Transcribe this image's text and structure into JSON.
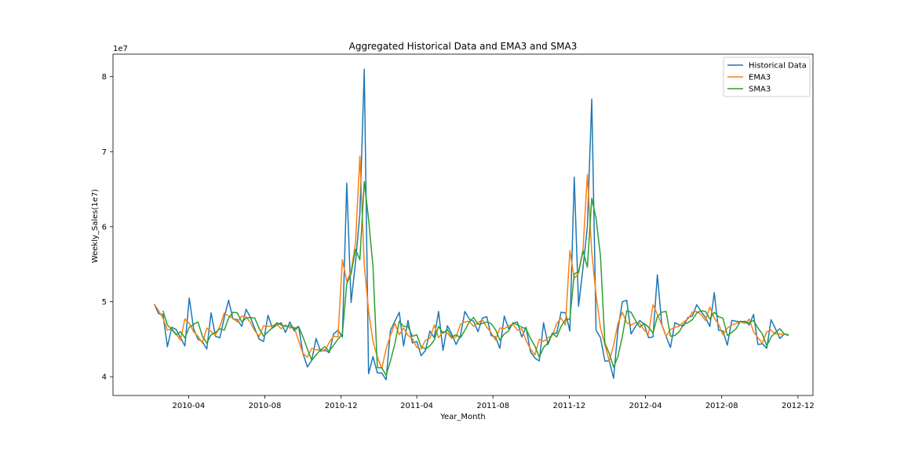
{
  "chart_data": {
    "type": "line",
    "title": "Aggregated Historical Data and EMA3 and SMA3",
    "xlabel": "Year_Month",
    "ylabel": "Weekly_Sales(1e7)",
    "y_offset_label": "1e7",
    "x_ticks": [
      "2010-04",
      "2010-08",
      "2010-12",
      "2011-04",
      "2011-08",
      "2011-12",
      "2012-04",
      "2012-08",
      "2012-12"
    ],
    "y_ticks": [
      4,
      5,
      6,
      7,
      8
    ],
    "xlim": [
      "2009-12-01",
      "2012-12-25"
    ],
    "ylim": [
      3.75,
      8.3
    ],
    "grid": false,
    "legend_position": "top-right",
    "start_date": "2010-02-05",
    "series": [
      {
        "name": "Historical Data",
        "color": "#1f77b4",
        "values": [
          4.97,
          4.84,
          4.83,
          4.4,
          4.66,
          4.63,
          4.52,
          4.41,
          5.05,
          4.64,
          4.5,
          4.47,
          4.37,
          4.85,
          4.54,
          4.52,
          4.79,
          5.02,
          4.77,
          4.76,
          4.67,
          4.9,
          4.79,
          4.64,
          4.5,
          4.47,
          4.82,
          4.65,
          4.69,
          4.72,
          4.59,
          4.73,
          4.61,
          4.67,
          4.31,
          4.13,
          4.22,
          4.51,
          4.34,
          4.36,
          4.32,
          4.57,
          4.62,
          4.53,
          6.58,
          4.99,
          5.52,
          6.17,
          8.1,
          4.04,
          4.27,
          4.05,
          4.05,
          3.96,
          4.62,
          4.74,
          4.86,
          4.41,
          4.75,
          4.45,
          4.47,
          4.28,
          4.35,
          4.61,
          4.52,
          4.87,
          4.35,
          4.68,
          4.57,
          4.43,
          4.55,
          4.87,
          4.77,
          4.74,
          4.6,
          4.78,
          4.8,
          4.55,
          4.53,
          4.38,
          4.81,
          4.64,
          4.71,
          4.73,
          4.53,
          4.66,
          4.33,
          4.25,
          4.21,
          4.72,
          4.43,
          4.58,
          4.58,
          4.86,
          4.85,
          4.61,
          6.66,
          4.94,
          5.45,
          6.0,
          7.7,
          4.62,
          4.52,
          4.21,
          4.21,
          3.98,
          4.63,
          5.0,
          5.02,
          4.57,
          4.67,
          4.75,
          4.7,
          4.52,
          4.53,
          5.36,
          4.7,
          4.54,
          4.39,
          4.72,
          4.69,
          4.68,
          4.79,
          4.81,
          4.96,
          4.87,
          4.79,
          4.67,
          5.12,
          4.62,
          4.61,
          4.42,
          4.75,
          4.74,
          4.73,
          4.74,
          4.69,
          4.83,
          4.43,
          4.44,
          4.38,
          4.76,
          4.64,
          4.51,
          4.57,
          4.56
        ]
      },
      {
        "name": "EMA3",
        "color": "#ff7f0e",
        "values": [
          4.97,
          4.88,
          4.78,
          4.62,
          4.64,
          4.57,
          4.49,
          4.77,
          4.71,
          4.6,
          4.54,
          4.45,
          4.65,
          4.6,
          4.56,
          4.67,
          4.85,
          4.81,
          4.78,
          4.73,
          4.81,
          4.8,
          4.72,
          4.61,
          4.54,
          4.68,
          4.67,
          4.68,
          4.7,
          4.64,
          4.69,
          4.65,
          4.66,
          4.48,
          4.31,
          4.26,
          4.38,
          4.36,
          4.36,
          4.34,
          4.46,
          4.54,
          4.53,
          5.56,
          5.27,
          5.4,
          5.78,
          6.94,
          5.49,
          4.88,
          4.47,
          4.26,
          4.11,
          4.37,
          4.55,
          4.71,
          4.56,
          4.65,
          4.55,
          4.51,
          4.39,
          4.37,
          4.49,
          4.51,
          4.69,
          4.52,
          4.6,
          4.58,
          4.51,
          4.53,
          4.7,
          4.73,
          4.74,
          4.67,
          4.72,
          4.76,
          4.66,
          4.59,
          4.49,
          4.65,
          4.64,
          4.68,
          4.7,
          4.62,
          4.64,
          4.48,
          4.37,
          4.29,
          4.5,
          4.47,
          4.52,
          4.55,
          4.71,
          4.78,
          4.69,
          5.68,
          5.31,
          5.38,
          5.69,
          6.7,
          5.66,
          5.09,
          4.65,
          4.43,
          4.21,
          4.42,
          4.71,
          4.86,
          4.72,
          4.69,
          4.72,
          4.71,
          4.62,
          4.57,
          4.96,
          4.83,
          4.69,
          4.54,
          4.63,
          4.66,
          4.67,
          4.73,
          4.77,
          4.86,
          4.87,
          4.83,
          4.75,
          4.93,
          4.78,
          4.7,
          4.56,
          4.65,
          4.69,
          4.71,
          4.73,
          4.71,
          4.77,
          4.6,
          4.52,
          4.45,
          4.6,
          4.62,
          4.57,
          4.57,
          4.56
        ]
      },
      {
        "name": "SMA3",
        "color": "#2ca02c",
        "values": [
          null,
          null,
          4.88,
          4.69,
          4.63,
          4.56,
          4.6,
          4.52,
          4.66,
          4.7,
          4.73,
          4.54,
          4.45,
          4.56,
          4.59,
          4.64,
          4.62,
          4.78,
          4.86,
          4.85,
          4.73,
          4.78,
          4.79,
          4.78,
          4.64,
          4.54,
          4.6,
          4.65,
          4.72,
          4.69,
          4.67,
          4.68,
          4.64,
          4.67,
          4.53,
          4.37,
          4.22,
          4.29,
          4.36,
          4.4,
          4.34,
          4.42,
          4.5,
          4.57,
          5.24,
          5.37,
          5.7,
          5.56,
          6.6,
          6.1,
          5.47,
          4.12,
          4.12,
          4.02,
          4.21,
          4.44,
          4.74,
          4.67,
          4.67,
          4.54,
          4.56,
          4.4,
          4.37,
          4.41,
          4.49,
          4.67,
          4.58,
          4.63,
          4.53,
          4.56,
          4.52,
          4.62,
          4.73,
          4.79,
          4.7,
          4.71,
          4.73,
          4.71,
          4.63,
          4.49,
          4.57,
          4.61,
          4.72,
          4.69,
          4.66,
          4.64,
          4.51,
          4.41,
          4.26,
          4.39,
          4.45,
          4.58,
          4.53,
          4.67,
          4.76,
          4.77,
          5.37,
          5.4,
          5.68,
          5.46,
          6.38,
          6.11,
          5.61,
          4.45,
          4.31,
          4.13,
          4.27,
          4.54,
          4.88,
          4.86,
          4.75,
          4.66,
          4.71,
          4.66,
          4.58,
          4.8,
          4.86,
          4.87,
          4.54,
          4.55,
          4.6,
          4.7,
          4.72,
          4.76,
          4.85,
          4.88,
          4.87,
          4.77,
          4.86,
          4.8,
          4.78,
          4.55,
          4.59,
          4.64,
          4.74,
          4.73,
          4.72,
          4.75,
          4.65,
          4.57,
          4.41,
          4.53,
          4.59,
          4.64,
          4.57,
          4.55
        ]
      }
    ]
  }
}
